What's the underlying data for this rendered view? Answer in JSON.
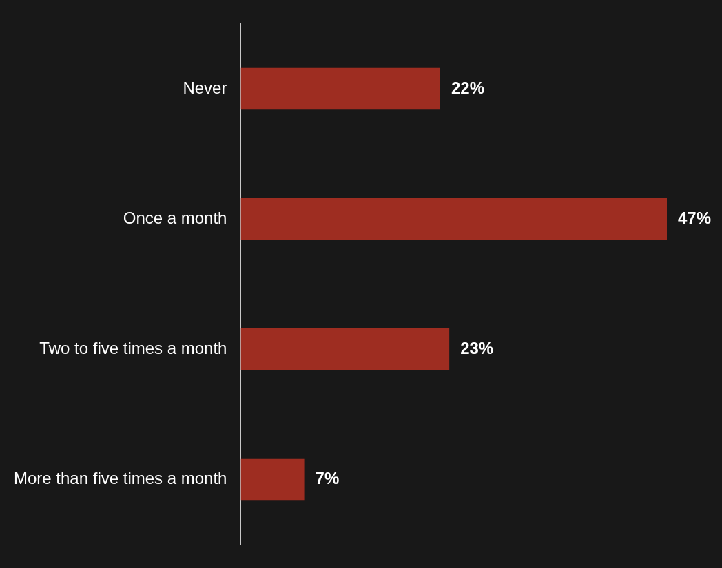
{
  "chart_data": {
    "type": "bar",
    "orientation": "horizontal",
    "categories": [
      "Never",
      "Once a month",
      "Two to five times a month",
      "More than five times a month"
    ],
    "values": [
      22,
      47,
      23,
      7
    ],
    "value_labels": [
      "22%",
      "47%",
      "23%",
      "7%"
    ],
    "color": "#9e2d21",
    "xlim": [
      0,
      47
    ],
    "tick_labels": "y"
  }
}
